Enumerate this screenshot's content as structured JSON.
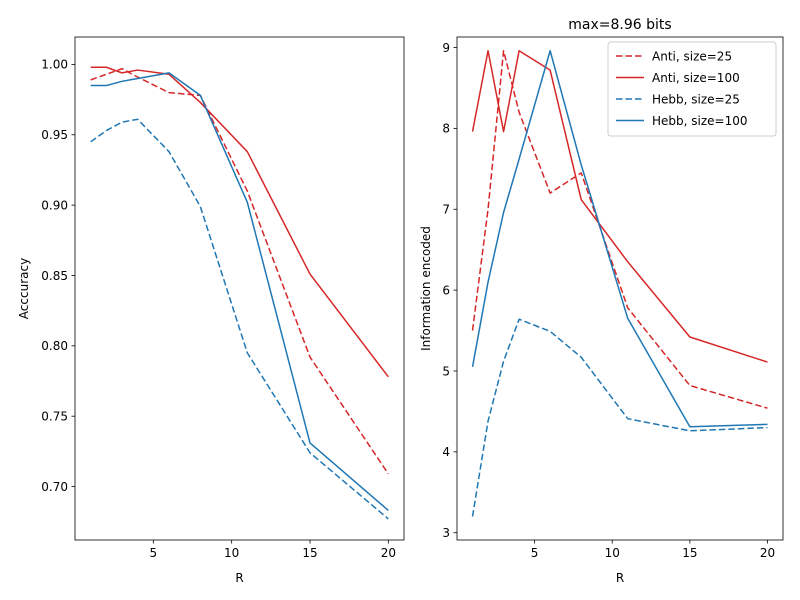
{
  "colors": {
    "anti": "#d62728",
    "hebb": "#1f77b4"
  },
  "chart_data": [
    {
      "type": "line",
      "title": "",
      "xlabel": "R",
      "ylabel": "Acccuracy",
      "xlim": [
        0,
        21
      ],
      "ylim": [
        0.662,
        1.0195
      ],
      "xticks": [
        5,
        10,
        15,
        20
      ],
      "xtick_labels": [
        "5",
        "10",
        "15",
        "20"
      ],
      "yticks": [
        0.7,
        0.75,
        0.8,
        0.85,
        0.9,
        0.95,
        1.0
      ],
      "ytick_labels": [
        "0.70",
        "0.75",
        "0.80",
        "0.85",
        "0.90",
        "0.95",
        "1.00"
      ],
      "grid": false,
      "legend": false,
      "series": [
        {
          "name": "Anti, size=25",
          "color": "#d62728",
          "dash": "dashed",
          "x": [
            1,
            2,
            3,
            4,
            6,
            8,
            11,
            15,
            20
          ],
          "y": [
            0.989,
            0.993,
            0.997,
            0.991,
            0.98,
            0.978,
            0.91,
            0.792,
            0.709
          ]
        },
        {
          "name": "Anti, size=100",
          "color": "#d62728",
          "dash": "solid",
          "x": [
            1,
            2,
            3,
            4,
            6,
            8,
            11,
            15,
            20
          ],
          "y": [
            0.998,
            0.998,
            0.994,
            0.996,
            0.993,
            0.973,
            0.938,
            0.851,
            0.778
          ]
        },
        {
          "name": "Hebb, size=25",
          "color": "#1f77b4",
          "dash": "dashed",
          "x": [
            1,
            2,
            3,
            4,
            6,
            8,
            11,
            15,
            20
          ],
          "y": [
            0.945,
            0.953,
            0.959,
            0.961,
            0.938,
            0.899,
            0.795,
            0.724,
            0.677
          ]
        },
        {
          "name": "Hebb, size=100",
          "color": "#1f77b4",
          "dash": "solid",
          "x": [
            1,
            2,
            3,
            4,
            6,
            8,
            11,
            15,
            20
          ],
          "y": [
            0.985,
            0.985,
            0.988,
            0.99,
            0.994,
            0.978,
            0.902,
            0.731,
            0.683
          ]
        }
      ]
    },
    {
      "type": "line",
      "title": "max=8.96 bits",
      "xlabel": "R",
      "ylabel": "Information encoded",
      "xlim": [
        0,
        21
      ],
      "ylim": [
        2.91,
        9.13
      ],
      "xticks": [
        5,
        10,
        15,
        20
      ],
      "xtick_labels": [
        "5",
        "10",
        "15",
        "20"
      ],
      "yticks": [
        3,
        4,
        5,
        6,
        7,
        8,
        9
      ],
      "ytick_labels": [
        "3",
        "4",
        "5",
        "6",
        "7",
        "8",
        "9"
      ],
      "grid": false,
      "legend": true,
      "legend_position": "top-right",
      "series": [
        {
          "name": "Anti, size=25",
          "color": "#d62728",
          "dash": "dashed",
          "x": [
            1,
            2,
            3,
            4,
            6,
            8,
            11,
            15,
            20
          ],
          "y": [
            5.5,
            7.0,
            8.96,
            8.2,
            7.2,
            7.45,
            5.78,
            4.82,
            4.54
          ]
        },
        {
          "name": "Anti, size=100",
          "color": "#d62728",
          "dash": "solid",
          "x": [
            1,
            2,
            3,
            4,
            6,
            8,
            11,
            15,
            20
          ],
          "y": [
            7.96,
            8.96,
            7.96,
            8.96,
            8.72,
            7.12,
            6.35,
            5.42,
            5.11
          ]
        },
        {
          "name": "Hebb, size=25",
          "color": "#1f77b4",
          "dash": "dashed",
          "x": [
            1,
            2,
            3,
            4,
            6,
            8,
            11,
            15,
            20
          ],
          "y": [
            3.2,
            4.38,
            5.12,
            5.64,
            5.49,
            5.17,
            4.41,
            4.26,
            4.3
          ]
        },
        {
          "name": "Hebb, size=100",
          "color": "#1f77b4",
          "dash": "solid",
          "x": [
            1,
            2,
            3,
            4,
            6,
            8,
            11,
            15,
            20
          ],
          "y": [
            5.05,
            6.1,
            6.96,
            7.62,
            8.96,
            7.55,
            5.65,
            4.31,
            4.34
          ]
        }
      ]
    }
  ]
}
